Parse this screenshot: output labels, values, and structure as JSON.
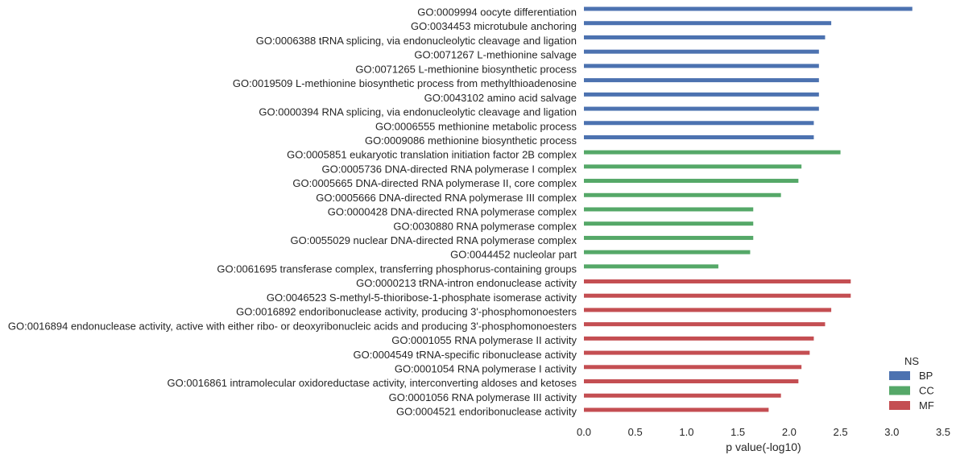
{
  "chart_data": {
    "type": "bar",
    "orientation": "horizontal",
    "categories": [
      "GO:0009994 oocyte differentiation",
      "GO:0034453 microtubule anchoring",
      "GO:0006388 tRNA splicing, via endonucleolytic cleavage and ligation",
      "GO:0071267 L-methionine salvage",
      "GO:0071265 L-methionine biosynthetic process",
      "GO:0019509 L-methionine biosynthetic process from methylthioadenosine",
      "GO:0043102 amino acid salvage",
      "GO:0000394 RNA splicing, via endonucleolytic cleavage and ligation",
      "GO:0006555 methionine metabolic process",
      "GO:0009086 methionine biosynthetic process",
      "GO:0005851 eukaryotic translation initiation factor 2B complex",
      "GO:0005736 DNA-directed RNA polymerase I complex",
      "GO:0005665 DNA-directed RNA polymerase II, core complex",
      "GO:0005666 DNA-directed RNA polymerase III complex",
      "GO:0000428 DNA-directed RNA polymerase complex",
      "GO:0030880 RNA polymerase complex",
      "GO:0055029 nuclear DNA-directed RNA polymerase complex",
      "GO:0044452 nucleolar part",
      "GO:0061695 transferase complex, transferring phosphorus-containing groups",
      "GO:0000213 tRNA-intron endonuclease activity",
      "GO:0046523 S-methyl-5-thioribose-1-phosphate isomerase activity",
      "GO:0016892 endoribonuclease activity, producing 3'-phosphomonoesters",
      "GO:0016894 endonuclease activity, active with either ribo- or deoxyribonucleic acids and producing 3'-phosphomonoesters",
      "GO:0001055 RNA polymerase II activity",
      "GO:0004549 tRNA-specific ribonuclease activity",
      "GO:0001054 RNA polymerase I activity",
      "GO:0016861 intramolecular oxidoreductase activity, interconverting aldoses and ketoses",
      "GO:0001056 RNA polymerase III activity",
      "GO:0004521 endoribonuclease activity"
    ],
    "series": [
      {
        "name": "BP",
        "color": "#4c72b0",
        "values": [
          3.2,
          2.41,
          2.35,
          2.29,
          2.29,
          2.29,
          2.29,
          2.29,
          2.24,
          2.24,
          null,
          null,
          null,
          null,
          null,
          null,
          null,
          null,
          null,
          null,
          null,
          null,
          null,
          null,
          null,
          null,
          null,
          null,
          null
        ]
      },
      {
        "name": "CC",
        "color": "#55a868",
        "values": [
          null,
          null,
          null,
          null,
          null,
          null,
          null,
          null,
          null,
          null,
          2.5,
          2.12,
          2.09,
          1.92,
          1.65,
          1.65,
          1.65,
          1.62,
          1.31,
          null,
          null,
          null,
          null,
          null,
          null,
          null,
          null,
          null,
          null
        ]
      },
      {
        "name": "MF",
        "color": "#c44e52",
        "values": [
          null,
          null,
          null,
          null,
          null,
          null,
          null,
          null,
          null,
          null,
          null,
          null,
          null,
          null,
          null,
          null,
          null,
          null,
          null,
          2.6,
          2.6,
          2.41,
          2.35,
          2.24,
          2.2,
          2.12,
          2.09,
          1.92,
          1.8
        ]
      }
    ],
    "xlabel": "p value(-log10)",
    "ylabel": "",
    "xlim": [
      0,
      3.5
    ],
    "xticks": [
      "0.0",
      "0.5",
      "1.0",
      "1.5",
      "2.0",
      "2.5",
      "3.0",
      "3.5"
    ],
    "grid": false,
    "legend": {
      "title": "NS",
      "position": "bottom-right",
      "entries": [
        "BP",
        "CC",
        "MF"
      ]
    }
  }
}
